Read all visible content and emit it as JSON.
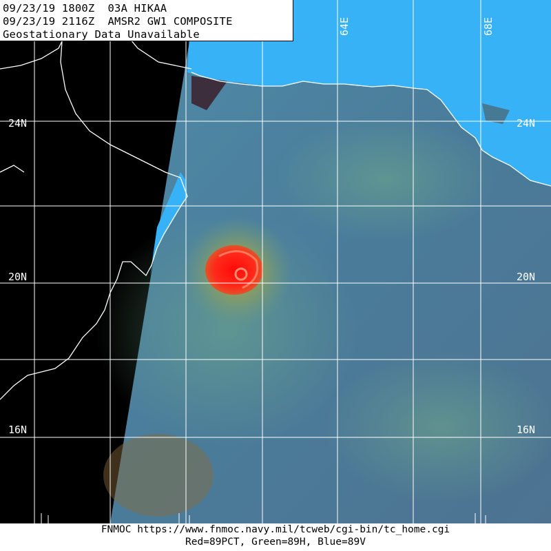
{
  "header": {
    "line1": "09/23/19 1800Z  03A HIKAA",
    "line2": "09/23/19 2116Z  AMSR2 GW1 COMPOSITE",
    "line3": "Geostationary Data Unavailable"
  },
  "grid_labels": {
    "lat": [
      "24N",
      "20N",
      "16N"
    ],
    "lon": [
      "64E",
      "68E"
    ]
  },
  "footer": {
    "url_line": "FNMOC https://www.fnmoc.navy.mil/tcweb/cgi-bin/tc_home.cgi",
    "channels_line": "Red=89PCT, Green=89H, Blue=89V"
  },
  "colors": {
    "land_no_data": "#000000",
    "land_swath": "#37b0f5",
    "ocean": "#4a7a98",
    "storm_core": "#ff1a1a",
    "grid": "#ffffff"
  }
}
